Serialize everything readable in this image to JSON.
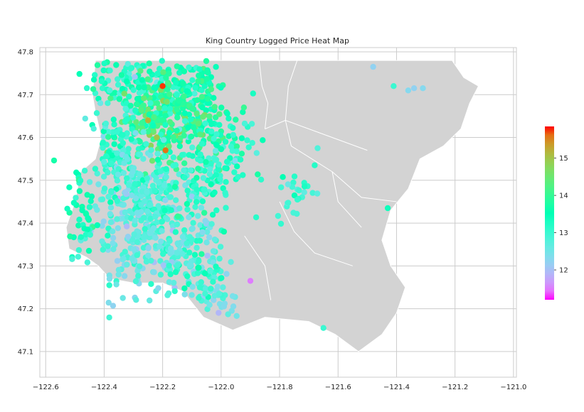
{
  "chart_data": {
    "type": "scatter",
    "title": "King Country Logged Price Heat Map",
    "xlabel": "",
    "ylabel": "",
    "xlim": [
      -122.62,
      -120.99
    ],
    "ylim": [
      47.04,
      47.81
    ],
    "grid": true,
    "x_ticks": [
      -122.6,
      -122.4,
      -122.2,
      -122.0,
      -121.8,
      -121.6,
      -121.4,
      -121.2,
      -121.0
    ],
    "x_tick_labels": [
      "−122.6",
      "−122.4",
      "−122.2",
      "−122.0",
      "−121.8",
      "−121.6",
      "−121.4",
      "−121.2",
      "−121.0"
    ],
    "y_ticks": [
      47.1,
      47.2,
      47.3,
      47.4,
      47.5,
      47.6,
      47.7,
      47.8
    ],
    "y_tick_labels": [
      "47.1",
      "47.2",
      "47.3",
      "47.4",
      "47.5",
      "47.6",
      "47.7",
      "47.8"
    ],
    "colormap": "rainbow",
    "colorbar": {
      "range": [
        11.2,
        15.85
      ],
      "ticks": [
        12,
        13,
        14,
        15
      ],
      "tick_labels": [
        "12",
        "13",
        "14",
        "15"
      ]
    },
    "background_map": {
      "fill": "#d3d3d3",
      "outline": [
        [
          -122.43,
          47.78
        ],
        [
          -122.2,
          47.78
        ],
        [
          -121.9,
          47.78
        ],
        [
          -121.6,
          47.78
        ],
        [
          -121.33,
          47.78
        ],
        [
          -121.21,
          47.78
        ],
        [
          -121.17,
          47.74
        ],
        [
          -121.12,
          47.72
        ],
        [
          -121.15,
          47.68
        ],
        [
          -121.18,
          47.62
        ],
        [
          -121.24,
          47.58
        ],
        [
          -121.32,
          47.55
        ],
        [
          -121.36,
          47.48
        ],
        [
          -121.42,
          47.43
        ],
        [
          -121.45,
          47.36
        ],
        [
          -121.42,
          47.3
        ],
        [
          -121.37,
          47.25
        ],
        [
          -121.4,
          47.19
        ],
        [
          -121.45,
          47.14
        ],
        [
          -121.53,
          47.1
        ],
        [
          -121.61,
          47.14
        ],
        [
          -121.7,
          47.17
        ],
        [
          -121.85,
          47.18
        ],
        [
          -121.96,
          47.15
        ],
        [
          -122.06,
          47.18
        ],
        [
          -122.13,
          47.24
        ],
        [
          -122.2,
          47.26
        ],
        [
          -122.3,
          47.26
        ],
        [
          -122.38,
          47.27
        ],
        [
          -122.42,
          47.3
        ],
        [
          -122.46,
          47.32
        ],
        [
          -122.52,
          47.34
        ],
        [
          -122.53,
          47.39
        ],
        [
          -122.5,
          47.45
        ],
        [
          -122.48,
          47.52
        ],
        [
          -122.43,
          47.55
        ],
        [
          -122.41,
          47.6
        ],
        [
          -122.43,
          47.66
        ],
        [
          -122.44,
          47.7
        ]
      ],
      "boundaries": [
        [
          [
            -121.87,
            47.78
          ],
          [
            -121.86,
            47.72
          ],
          [
            -121.84,
            47.68
          ],
          [
            -121.85,
            47.62
          ]
        ],
        [
          [
            -121.74,
            47.78
          ],
          [
            -121.77,
            47.72
          ],
          [
            -121.78,
            47.64
          ],
          [
            -121.76,
            47.58
          ]
        ],
        [
          [
            -121.85,
            47.62
          ],
          [
            -121.78,
            47.64
          ],
          [
            -121.66,
            47.61
          ],
          [
            -121.5,
            47.57
          ]
        ],
        [
          [
            -121.76,
            47.58
          ],
          [
            -121.62,
            47.52
          ],
          [
            -121.52,
            47.46
          ],
          [
            -121.4,
            47.45
          ]
        ],
        [
          [
            -121.8,
            47.45
          ],
          [
            -121.75,
            47.38
          ],
          [
            -121.68,
            47.33
          ],
          [
            -121.55,
            47.3
          ]
        ],
        [
          [
            -121.92,
            47.37
          ],
          [
            -121.85,
            47.3
          ],
          [
            -121.83,
            47.22
          ]
        ],
        [
          [
            -121.62,
            47.52
          ],
          [
            -121.6,
            47.45
          ],
          [
            -121.52,
            47.39
          ]
        ]
      ]
    },
    "series": [
      {
        "clusters": [
          {
            "center": [
              -122.3,
              47.72
            ],
            "spread": [
              0.08,
              0.045
            ],
            "count": 140,
            "value_mean": 13.3,
            "value_sd": 0.35
          },
          {
            "center": [
              -122.12,
              47.72
            ],
            "spread": [
              0.07,
              0.045
            ],
            "count": 130,
            "value_mean": 13.5,
            "value_sd": 0.35
          },
          {
            "center": [
              -122.22,
              47.63
            ],
            "spread": [
              0.07,
              0.05
            ],
            "count": 160,
            "value_mean": 14.0,
            "value_sd": 0.45
          },
          {
            "center": [
              -122.1,
              47.62
            ],
            "spread": [
              0.08,
              0.05
            ],
            "count": 130,
            "value_mean": 13.7,
            "value_sd": 0.4
          },
          {
            "center": [
              -122.36,
              47.56
            ],
            "spread": [
              0.04,
              0.05
            ],
            "count": 80,
            "value_mean": 13.1,
            "value_sd": 0.35
          },
          {
            "center": [
              -122.3,
              47.48
            ],
            "spread": [
              0.05,
              0.05
            ],
            "count": 110,
            "value_mean": 12.7,
            "value_sd": 0.3
          },
          {
            "center": [
              -122.18,
              47.45
            ],
            "spread": [
              0.07,
              0.06
            ],
            "count": 120,
            "value_mean": 12.9,
            "value_sd": 0.3
          },
          {
            "center": [
              -122.3,
              47.36
            ],
            "spread": [
              0.07,
              0.06
            ],
            "count": 140,
            "value_mean": 12.6,
            "value_sd": 0.25
          },
          {
            "center": [
              -122.15,
              47.33
            ],
            "spread": [
              0.07,
              0.05
            ],
            "count": 120,
            "value_mean": 12.7,
            "value_sd": 0.3
          },
          {
            "center": [
              -122.05,
              47.5
            ],
            "spread": [
              0.06,
              0.04
            ],
            "count": 70,
            "value_mean": 13.2,
            "value_sd": 0.35
          },
          {
            "center": [
              -122.47,
              47.42
            ],
            "spread": [
              0.03,
              0.06
            ],
            "count": 50,
            "value_mean": 13.4,
            "value_sd": 0.35
          },
          {
            "center": [
              -121.95,
              47.57
            ],
            "spread": [
              0.05,
              0.04
            ],
            "count": 40,
            "value_mean": 13.1,
            "value_sd": 0.3
          },
          {
            "center": [
              -121.75,
              47.47
            ],
            "spread": [
              0.03,
              0.03
            ],
            "count": 25,
            "value_mean": 13.0,
            "value_sd": 0.35
          },
          {
            "center": [
              -122.01,
              47.21
            ],
            "spread": [
              0.03,
              0.025
            ],
            "count": 30,
            "value_mean": 12.6,
            "value_sd": 0.25
          },
          {
            "center": [
              -122.05,
              47.28
            ],
            "spread": [
              0.04,
              0.03
            ],
            "count": 35,
            "value_mean": 13.0,
            "value_sd": 0.3
          }
        ],
        "points": [
          {
            "x": -121.48,
            "y": 47.765,
            "v": 12.2
          },
          {
            "x": -121.41,
            "y": 47.72,
            "v": 13.0
          },
          {
            "x": -121.36,
            "y": 47.71,
            "v": 12.3
          },
          {
            "x": -121.34,
            "y": 47.715,
            "v": 12.2
          },
          {
            "x": -121.31,
            "y": 47.715,
            "v": 12.3
          },
          {
            "x": -121.67,
            "y": 47.575,
            "v": 12.8
          },
          {
            "x": -121.68,
            "y": 47.535,
            "v": 13.2
          },
          {
            "x": -121.43,
            "y": 47.435,
            "v": 13.4
          },
          {
            "x": -121.65,
            "y": 47.155,
            "v": 13.0
          },
          {
            "x": -121.9,
            "y": 47.265,
            "v": 11.5
          },
          {
            "x": -122.2,
            "y": 47.72,
            "v": 15.8
          },
          {
            "x": -122.19,
            "y": 47.57,
            "v": 15.6
          },
          {
            "x": -122.25,
            "y": 47.64,
            "v": 15.2
          },
          {
            "x": -122.22,
            "y": 47.6,
            "v": 15.0
          }
        ]
      }
    ]
  }
}
